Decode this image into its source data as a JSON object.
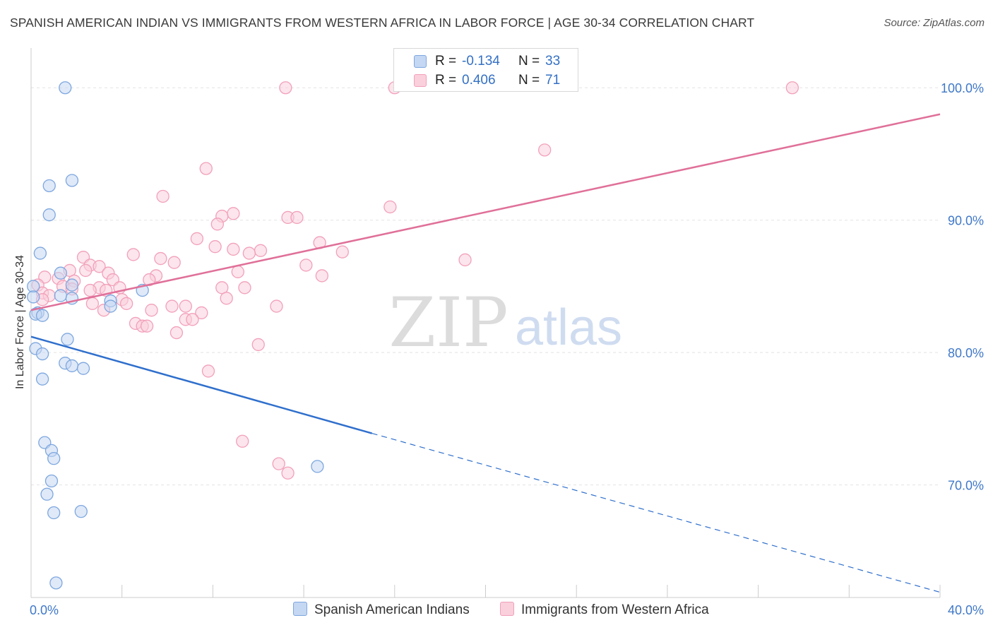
{
  "header": {
    "title": "SPANISH AMERICAN INDIAN VS IMMIGRANTS FROM WESTERN AFRICA IN LABOR FORCE | AGE 30-34 CORRELATION CHART",
    "source": "Source: ZipAtlas.com"
  },
  "watermark": {
    "zip": "ZIP",
    "atlas": "atlas"
  },
  "stats": {
    "rows": [
      {
        "r_label": "R = ",
        "r_value": "-0.134",
        "n_label": "N = ",
        "n_value": "33"
      },
      {
        "r_label": "R = ",
        "r_value": "0.406",
        "n_label": "N = ",
        "n_value": "71"
      }
    ]
  },
  "legend": {
    "items": [
      {
        "label": "Spanish American Indians"
      },
      {
        "label": "Immigrants from Western Africa"
      }
    ]
  },
  "chart_data": {
    "type": "scatter",
    "title": "SPANISH AMERICAN INDIAN VS IMMIGRANTS FROM WESTERN AFRICA IN LABOR FORCE | AGE 30-34 CORRELATION CHART",
    "xlabel": "",
    "ylabel": "In Labor Force | Age 30-34",
    "xlim": [
      0,
      40
    ],
    "ylim": [
      61.5,
      103
    ],
    "x_tick_labels": [
      "0.0%",
      "40.0%"
    ],
    "y_ticks": [
      70,
      80,
      90,
      100
    ],
    "y_tick_labels": [
      "70.0%",
      "80.0%",
      "90.0%",
      "100.0%"
    ],
    "grid": true,
    "legend_position": "bottom",
    "series": [
      {
        "name": "Spanish American Indians",
        "color": "#7ea7df",
        "line_color": "#2f6fcc",
        "trend": {
          "x0": 0,
          "y0": 81.2,
          "x1": 15.0,
          "y1": 73.9,
          "dash_to_x": 40,
          "dash_to_y": 61.9
        },
        "points": [
          [
            1.5,
            100.0
          ],
          [
            1.8,
            93.0
          ],
          [
            0.8,
            92.6
          ],
          [
            0.8,
            90.4
          ],
          [
            0.4,
            87.5
          ],
          [
            1.3,
            86.0
          ],
          [
            1.8,
            85.1
          ],
          [
            0.1,
            85.0
          ],
          [
            0.1,
            84.2
          ],
          [
            1.3,
            84.3
          ],
          [
            1.8,
            84.1
          ],
          [
            3.5,
            83.9
          ],
          [
            3.5,
            83.5
          ],
          [
            4.9,
            84.7
          ],
          [
            0.3,
            83.0
          ],
          [
            0.2,
            82.9
          ],
          [
            0.5,
            82.8
          ],
          [
            1.6,
            81.0
          ],
          [
            0.2,
            80.3
          ],
          [
            0.5,
            79.9
          ],
          [
            1.5,
            79.2
          ],
          [
            1.8,
            79.0
          ],
          [
            2.3,
            78.8
          ],
          [
            0.5,
            78.0
          ],
          [
            0.6,
            73.2
          ],
          [
            0.9,
            72.6
          ],
          [
            1.0,
            72.0
          ],
          [
            0.9,
            70.3
          ],
          [
            0.7,
            69.3
          ],
          [
            1.0,
            67.9
          ],
          [
            2.2,
            68.0
          ],
          [
            12.6,
            71.4
          ],
          [
            1.1,
            62.6
          ]
        ]
      },
      {
        "name": "Immigrants from Western Africa",
        "color": "#f2a0ba",
        "line_color": "#e07099",
        "trend": {
          "x0": 0,
          "y0": 83.2,
          "x1": 40,
          "y1": 98.0
        },
        "points": [
          [
            11.2,
            100.0
          ],
          [
            16.0,
            100.0
          ],
          [
            33.5,
            100.0
          ],
          [
            22.6,
            95.3
          ],
          [
            7.7,
            93.9
          ],
          [
            5.8,
            91.8
          ],
          [
            15.8,
            91.0
          ],
          [
            8.9,
            90.5
          ],
          [
            8.4,
            90.3
          ],
          [
            11.3,
            90.2
          ],
          [
            11.7,
            90.2
          ],
          [
            8.2,
            89.7
          ],
          [
            7.3,
            88.6
          ],
          [
            12.7,
            88.3
          ],
          [
            8.1,
            88.0
          ],
          [
            8.9,
            87.8
          ],
          [
            10.1,
            87.7
          ],
          [
            9.6,
            87.5
          ],
          [
            13.7,
            87.6
          ],
          [
            4.5,
            87.4
          ],
          [
            2.3,
            87.2
          ],
          [
            5.7,
            87.1
          ],
          [
            19.1,
            87.0
          ],
          [
            6.3,
            86.8
          ],
          [
            2.6,
            86.6
          ],
          [
            3.0,
            86.5
          ],
          [
            12.1,
            86.6
          ],
          [
            1.7,
            86.2
          ],
          [
            2.4,
            86.2
          ],
          [
            9.1,
            86.1
          ],
          [
            3.4,
            86.0
          ],
          [
            5.5,
            85.8
          ],
          [
            12.8,
            85.8
          ],
          [
            0.6,
            85.7
          ],
          [
            1.2,
            85.6
          ],
          [
            3.6,
            85.5
          ],
          [
            1.9,
            85.4
          ],
          [
            5.2,
            85.5
          ],
          [
            1.4,
            85.0
          ],
          [
            0.3,
            85.1
          ],
          [
            3.0,
            84.9
          ],
          [
            2.6,
            84.7
          ],
          [
            3.9,
            84.9
          ],
          [
            1.8,
            84.8
          ],
          [
            3.3,
            84.7
          ],
          [
            8.4,
            84.9
          ],
          [
            9.4,
            84.9
          ],
          [
            0.5,
            84.5
          ],
          [
            0.8,
            84.3
          ],
          [
            0.5,
            84.0
          ],
          [
            4.0,
            84.0
          ],
          [
            8.6,
            84.1
          ],
          [
            2.7,
            83.7
          ],
          [
            4.2,
            83.7
          ],
          [
            6.2,
            83.5
          ],
          [
            6.8,
            83.5
          ],
          [
            10.8,
            83.5
          ],
          [
            3.2,
            83.2
          ],
          [
            5.3,
            83.2
          ],
          [
            7.5,
            83.0
          ],
          [
            6.8,
            82.5
          ],
          [
            7.1,
            82.5
          ],
          [
            4.6,
            82.2
          ],
          [
            4.9,
            82.0
          ],
          [
            5.1,
            82.0
          ],
          [
            6.4,
            81.5
          ],
          [
            10.0,
            80.6
          ],
          [
            7.8,
            78.6
          ],
          [
            9.3,
            73.3
          ],
          [
            10.9,
            71.6
          ],
          [
            11.3,
            70.9
          ]
        ]
      }
    ]
  }
}
